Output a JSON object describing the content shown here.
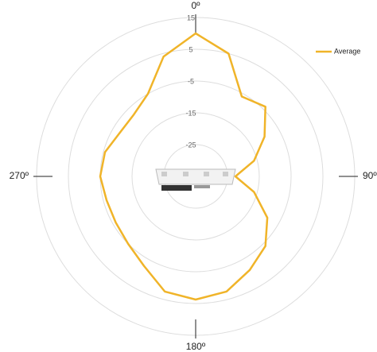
{
  "chart_data": {
    "type": "polar",
    "theta": [
      0,
      15,
      30,
      45,
      60,
      75,
      90,
      105,
      120,
      135,
      150,
      165,
      180,
      195,
      210,
      225,
      240,
      255,
      270,
      285,
      300,
      315,
      330,
      345
    ],
    "series": [
      {
        "name": "Average",
        "color": "#f0b429",
        "values": [
          10,
          5,
          -6,
          -4,
          -10,
          -16,
          -22.5,
          -16,
          -9,
          -4,
          -1,
          2.5,
          3.75,
          2.5,
          -2.5,
          -5,
          -6,
          -6,
          -5,
          -5.5,
          -7.5,
          -7.5,
          -5,
          4
        ]
      }
    ],
    "rlim": [
      -35,
      15
    ],
    "rticks": [
      -25,
      -15,
      -5,
      5,
      15
    ],
    "thetaticks": [
      {
        "value": 0,
        "label": "0º"
      },
      {
        "value": 90,
        "label": "90º"
      },
      {
        "value": 180,
        "label": "180º"
      },
      {
        "value": 270,
        "label": "270º"
      }
    ],
    "grid": true,
    "legend": "upper right"
  }
}
